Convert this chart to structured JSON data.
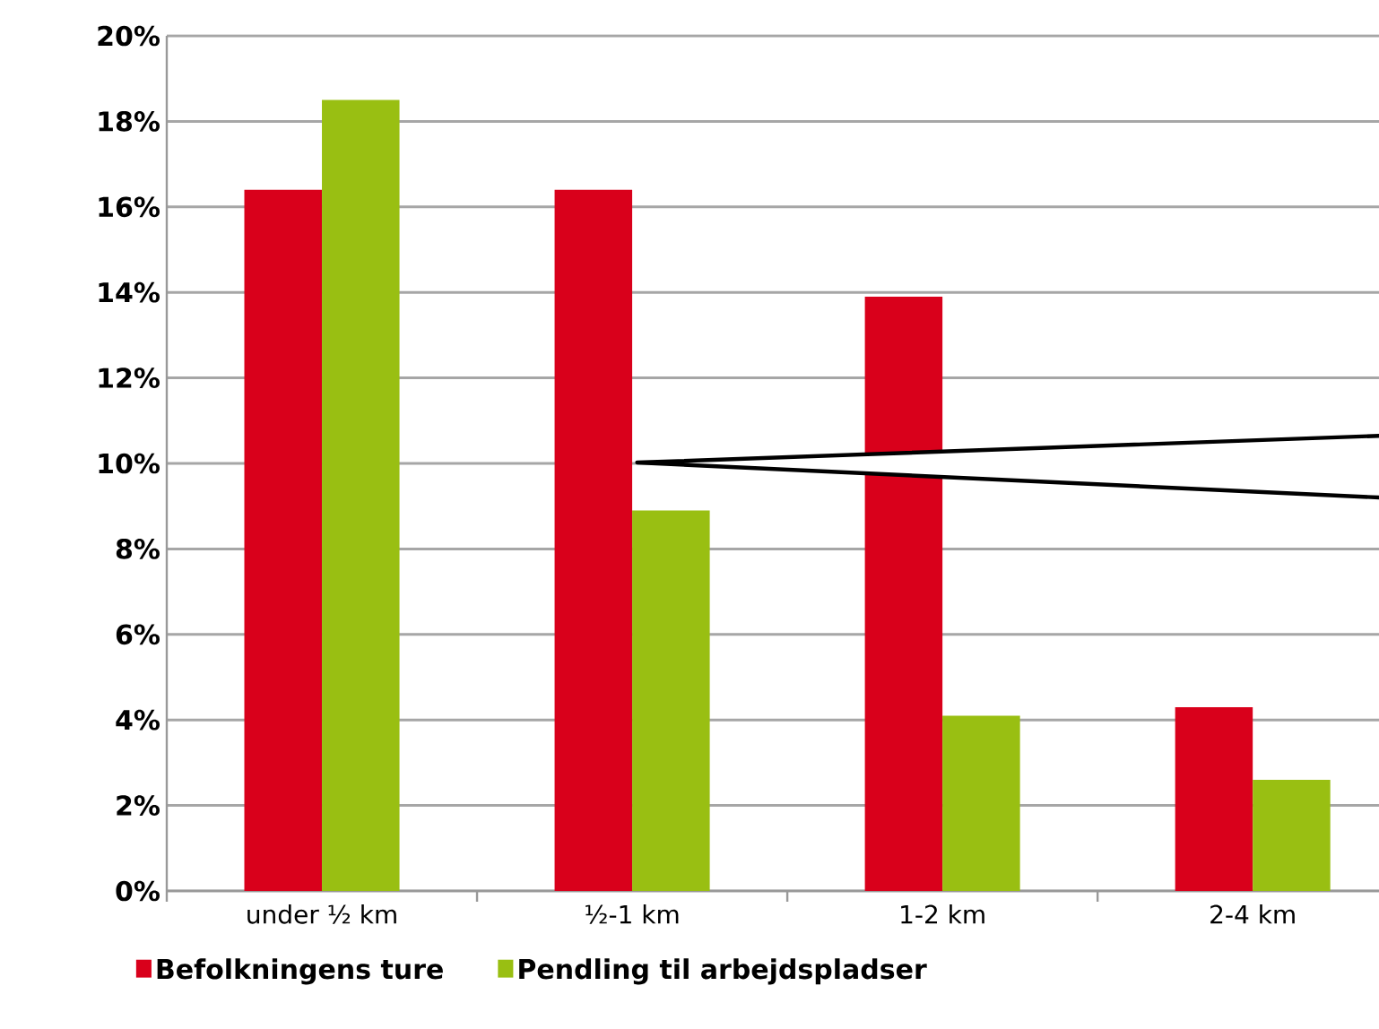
{
  "chart_data": {
    "type": "bar",
    "categories": [
      "under ½ km",
      "½-1 km",
      "1-2 km",
      "2-4 km"
    ],
    "series": [
      {
        "name": "Befolkningens ture",
        "color": "#d9001b",
        "values": [
          16.4,
          16.4,
          13.9,
          4.3
        ]
      },
      {
        "name": "Pendling til arbejdspladser",
        "color": "#99bf12",
        "values": [
          18.5,
          8.9,
          4.1,
          2.6
        ]
      }
    ],
    "ylim": [
      0,
      20
    ],
    "yticks": [
      {
        "value": 0,
        "label": "0%"
      },
      {
        "value": 2,
        "label": "2%"
      },
      {
        "value": 4,
        "label": "4%"
      },
      {
        "value": 6,
        "label": "6%"
      },
      {
        "value": 8,
        "label": "8%"
      },
      {
        "value": 10,
        "label": "10%"
      },
      {
        "value": 12,
        "label": "12%"
      },
      {
        "value": 14,
        "label": "14%"
      },
      {
        "value": 16,
        "label": "16%"
      },
      {
        "value": 18,
        "label": "18%"
      },
      {
        "value": 20,
        "label": "20%"
      }
    ],
    "grid": "y",
    "legend": "bottom"
  }
}
